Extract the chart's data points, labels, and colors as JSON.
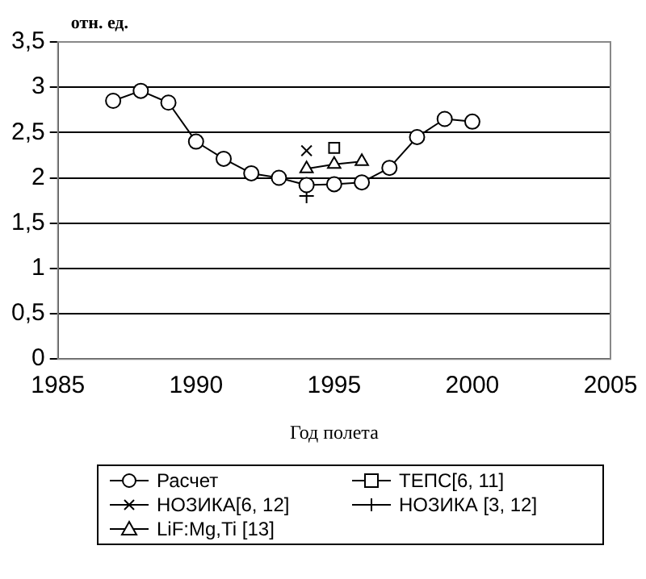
{
  "chart_data": {
    "type": "line",
    "xlabel": "Год полета",
    "ylabel": "отн. ед.",
    "xlim": [
      1985,
      2005
    ],
    "xticks": [
      1985,
      1990,
      1995,
      2000,
      2005
    ],
    "ylim": [
      0,
      3.5
    ],
    "yticks": [
      0,
      {
        "value": 0.5,
        "label": "0,5"
      },
      1,
      {
        "value": 1.5,
        "label": "1,5"
      },
      2,
      {
        "value": 2.5,
        "label": "2,5"
      },
      3,
      {
        "value": 3.5,
        "label": "3,5"
      }
    ],
    "grid": "y",
    "legend": "bottom",
    "line_style": "solid",
    "series": [
      {
        "name": "Расчет",
        "color": "#000000",
        "marker": "circle",
        "x": [
          1987,
          1988,
          1989,
          1990,
          1991,
          1992,
          1993,
          1994,
          1995,
          1996,
          1997,
          1998,
          1999,
          2000
        ],
        "values": [
          2.85,
          2.96,
          2.83,
          2.4,
          2.21,
          2.05,
          2.0,
          1.92,
          1.93,
          1.95,
          2.11,
          2.45,
          2.65,
          2.62
        ]
      },
      {
        "name": "ТЕПС[6, 11]",
        "color": "#000000",
        "marker": "square",
        "x": [
          1995
        ],
        "values": [
          2.33
        ]
      },
      {
        "name": "НОЗИКА[6, 12]",
        "color": "#000000",
        "marker": "x",
        "x": [
          1994
        ],
        "values": [
          2.3
        ]
      },
      {
        "name": "НОЗИКА [3, 12]",
        "color": "#000000",
        "marker": "cross",
        "x": [
          1994
        ],
        "values": [
          1.8
        ]
      },
      {
        "name": "LiF:Mg,Ti [13]",
        "color": "#000000",
        "marker": "triangle",
        "x": [
          1994,
          1995,
          1996
        ],
        "values": [
          2.1,
          2.15,
          2.18
        ]
      }
    ]
  }
}
